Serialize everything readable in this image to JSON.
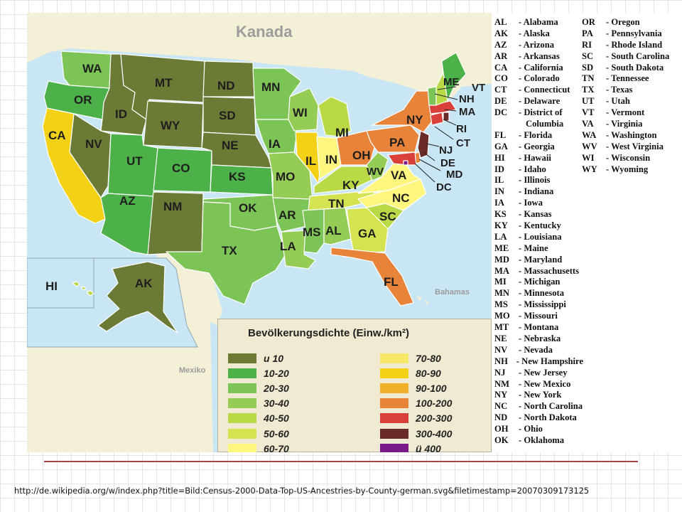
{
  "map": {
    "labels": {
      "canada": "Kanada",
      "mexico": "Mexiko",
      "bahamas": "Bahamas"
    },
    "states": [
      {
        "code": "WA",
        "density": "20-30",
        "color": "#7dc456"
      },
      {
        "code": "OR",
        "density": "10-20",
        "color": "#4db14a"
      },
      {
        "code": "CA",
        "density": "80-90",
        "color": "#f2d116"
      },
      {
        "code": "ID",
        "density": "u 10",
        "color": "#6b7b36"
      },
      {
        "code": "NV",
        "density": "u 10",
        "color": "#6b7b36"
      },
      {
        "code": "MT",
        "density": "u 10",
        "color": "#6b7b36"
      },
      {
        "code": "WY",
        "density": "u 10",
        "color": "#6b7b36"
      },
      {
        "code": "UT",
        "density": "10-20",
        "color": "#4db14a"
      },
      {
        "code": "CO",
        "density": "10-20",
        "color": "#4db14a"
      },
      {
        "code": "AZ",
        "density": "10-20",
        "color": "#4db14a"
      },
      {
        "code": "NM",
        "density": "u 10",
        "color": "#6b7b36"
      },
      {
        "code": "ND",
        "density": "u 10",
        "color": "#6b7b36"
      },
      {
        "code": "SD",
        "density": "u 10",
        "color": "#6b7b36"
      },
      {
        "code": "NE",
        "density": "u 10",
        "color": "#6b7b36"
      },
      {
        "code": "KS",
        "density": "10-20",
        "color": "#4db14a"
      },
      {
        "code": "OK",
        "density": "20-30",
        "color": "#7dc456"
      },
      {
        "code": "TX",
        "density": "20-30",
        "color": "#7dc456"
      },
      {
        "code": "MN",
        "density": "20-30",
        "color": "#7dc456"
      },
      {
        "code": "IA",
        "density": "20-30",
        "color": "#7dc456"
      },
      {
        "code": "MO",
        "density": "30-40",
        "color": "#95cc55"
      },
      {
        "code": "AR",
        "density": "20-30",
        "color": "#7dc456"
      },
      {
        "code": "LA",
        "density": "30-40",
        "color": "#95cc55"
      },
      {
        "code": "WI",
        "density": "30-40",
        "color": "#95cc55"
      },
      {
        "code": "IL",
        "density": "80-90",
        "color": "#f2d116"
      },
      {
        "code": "MI",
        "density": "40-50",
        "color": "#b9da46"
      },
      {
        "code": "IN",
        "density": "60-70",
        "color": "#fff67f"
      },
      {
        "code": "OH",
        "density": "100-200",
        "color": "#e8833a"
      },
      {
        "code": "KY",
        "density": "40-50",
        "color": "#b9da46"
      },
      {
        "code": "TN",
        "density": "50-60",
        "color": "#d4e350"
      },
      {
        "code": "MS",
        "density": "20-30",
        "color": "#7dc456"
      },
      {
        "code": "AL",
        "density": "30-40",
        "color": "#95cc55"
      },
      {
        "code": "GA",
        "density": "50-60",
        "color": "#d4e350"
      },
      {
        "code": "FL",
        "density": "100-200",
        "color": "#e8833a"
      },
      {
        "code": "SC",
        "density": "40-50",
        "color": "#b9da46"
      },
      {
        "code": "NC",
        "density": "60-70",
        "color": "#fff67f"
      },
      {
        "code": "VA",
        "density": "60-70",
        "color": "#fff67f"
      },
      {
        "code": "WV",
        "density": "30-40",
        "color": "#95cc55"
      },
      {
        "code": "PA",
        "density": "100-200",
        "color": "#e8833a"
      },
      {
        "code": "NY",
        "density": "100-200",
        "color": "#e8833a"
      },
      {
        "code": "NJ",
        "density": "300-400",
        "color": "#6a2a28"
      },
      {
        "code": "DE",
        "density": "100-200",
        "color": "#e8833a"
      },
      {
        "code": "MD",
        "density": "200-300",
        "color": "#d9403a"
      },
      {
        "code": "DC",
        "density": "ü 400",
        "color": "#7b1a8a"
      },
      {
        "code": "CT",
        "density": "200-300",
        "color": "#d9403a"
      },
      {
        "code": "RI",
        "density": "300-400",
        "color": "#6a2a28"
      },
      {
        "code": "MA",
        "density": "200-300",
        "color": "#d9403a"
      },
      {
        "code": "VT",
        "density": "20-30",
        "color": "#7dc456"
      },
      {
        "code": "NH",
        "density": "40-50",
        "color": "#b9da46"
      },
      {
        "code": "ME",
        "density": "10-20",
        "color": "#4db14a"
      },
      {
        "code": "AK",
        "density": "u 10",
        "color": "#6b7b36"
      },
      {
        "code": "HI",
        "density": "40-50",
        "color": "#b9da46"
      }
    ]
  },
  "legend": {
    "title": "Bevölkerungsdichte (Einw./km²)",
    "left": [
      {
        "label": "u 10",
        "color": "#6b7b36"
      },
      {
        "label": "10-20",
        "color": "#4db14a"
      },
      {
        "label": "20-30",
        "color": "#7dc456"
      },
      {
        "label": "30-40",
        "color": "#95cc55"
      },
      {
        "label": "40-50",
        "color": "#b9da46"
      },
      {
        "label": "50-60",
        "color": "#d4e350"
      },
      {
        "label": "60-70",
        "color": "#fff67f"
      }
    ],
    "right": [
      {
        "label": "70-80",
        "color": "#f7e86a"
      },
      {
        "label": "80-90",
        "color": "#f2d116"
      },
      {
        "label": "90-100",
        "color": "#f0b02a"
      },
      {
        "label": "100-200",
        "color": "#e8833a"
      },
      {
        "label": "200-300",
        "color": "#d9403a"
      },
      {
        "label": "300-400",
        "color": "#6a2a28"
      },
      {
        "label": "ü 400",
        "color": "#7b1a8a"
      }
    ]
  },
  "abbreviations": {
    "col1": [
      {
        "code": "AL",
        "name": "- Alabama"
      },
      {
        "code": "AK",
        "name": "- Alaska"
      },
      {
        "code": "AZ",
        "name": "- Arizona"
      },
      {
        "code": "AR",
        "name": "- Arkansas"
      },
      {
        "code": "CA",
        "name": "- California"
      },
      {
        "code": "CO",
        "name": "- Colorado"
      },
      {
        "code": "CT",
        "name": "- Connecticut"
      },
      {
        "code": "DE",
        "name": "- Delaware"
      },
      {
        "code": "DC",
        "name": "- District of"
      },
      {
        "code": "",
        "name": "Columbia"
      },
      {
        "code": "FL",
        "name": "- Florida"
      },
      {
        "code": "GA",
        "name": "- Georgia"
      },
      {
        "code": "HI",
        "name": "- Hawaii"
      },
      {
        "code": "ID",
        "name": "- Idaho"
      },
      {
        "code": "IL",
        "name": "- Illinois"
      },
      {
        "code": "IN",
        "name": "- Indiana"
      },
      {
        "code": "IA",
        "name": "- Iowa"
      },
      {
        "code": "KS",
        "name": "- Kansas"
      },
      {
        "code": "KY",
        "name": "- Kentucky"
      },
      {
        "code": "LA",
        "name": "- Louisiana"
      },
      {
        "code": "ME",
        "name": "- Maine"
      },
      {
        "code": "MD",
        "name": "- Maryland"
      },
      {
        "code": "MA",
        "name": "- Massachusetts"
      },
      {
        "code": "MI",
        "name": "- Michigan"
      },
      {
        "code": "MN",
        "name": "- Minnesota"
      },
      {
        "code": "MS",
        "name": "- Mississippi"
      },
      {
        "code": "MO",
        "name": "- Missouri"
      },
      {
        "code": "MT",
        "name": "- Montana"
      },
      {
        "code": "NE",
        "name": "- Nebraska"
      },
      {
        "code": "NV",
        "name": "- Nevada"
      },
      {
        "code": "NH",
        "name": "- New Hampshire"
      },
      {
        "code": "NJ",
        "name": "- New Jersey"
      },
      {
        "code": "NM",
        "name": "- New Mexico"
      },
      {
        "code": "NY",
        "name": "- New York"
      },
      {
        "code": "NC",
        "name": "- North Carolina"
      },
      {
        "code": "ND",
        "name": "- North Dakota"
      },
      {
        "code": "OH",
        "name": "- Ohio"
      },
      {
        "code": "OK",
        "name": "- Oklahoma"
      }
    ],
    "col2": [
      {
        "code": "OR",
        "name": "- Oregon"
      },
      {
        "code": "PA",
        "name": "- Pennsylvania"
      },
      {
        "code": "RI",
        "name": "- Rhode Island"
      },
      {
        "code": "SC",
        "name": "- South Carolina"
      },
      {
        "code": "SD",
        "name": "- South Dakota"
      },
      {
        "code": "TN",
        "name": "- Tennessee"
      },
      {
        "code": "TX",
        "name": "- Texas"
      },
      {
        "code": "UT",
        "name": "- Utah"
      },
      {
        "code": "VT",
        "name": "- Vermont"
      },
      {
        "code": "VA",
        "name": "- Virginia"
      },
      {
        "code": "WA",
        "name": "- Washington"
      },
      {
        "code": "WV",
        "name": "- West Virginia"
      },
      {
        "code": "WI",
        "name": "- Wisconsin"
      },
      {
        "code": "WY",
        "name": "- Wyoming"
      }
    ]
  },
  "source_url": "http://de.wikipedia.org/w/index.php?title=Bild:Census-2000-Data-Top-US-Ancestries-by-County-german.svg&filetimestamp=20070309173125"
}
